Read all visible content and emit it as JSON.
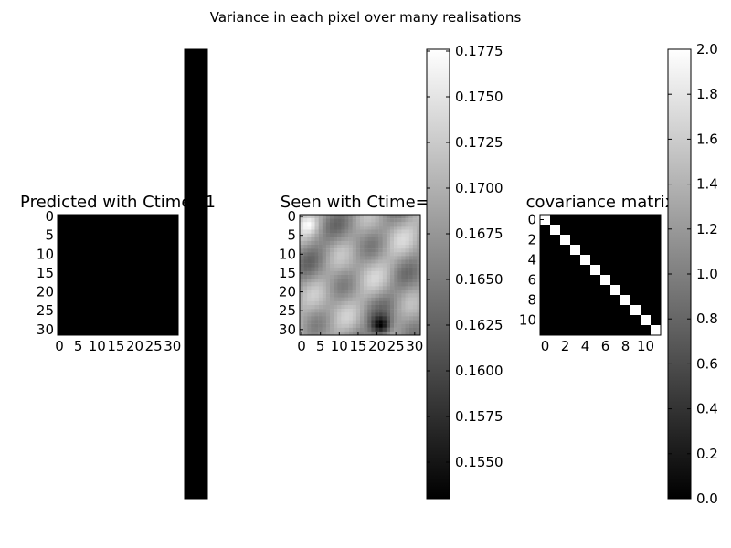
{
  "figure": {
    "suptitle": "Variance in each pixel over many realisations"
  },
  "chart_data": [
    {
      "type": "heatmap",
      "title": "Predicted with Ctime=1",
      "rows": 32,
      "cols": 32,
      "cmap": "gray",
      "values_description_uniform": 0.0,
      "vmin": 0.0,
      "vmax": 0.0,
      "xticks": [
        0,
        5,
        10,
        15,
        20,
        25,
        30
      ],
      "yticks": [
        0,
        5,
        10,
        15,
        20,
        25,
        30
      ],
      "xtick_labels": [
        "0",
        "5",
        "10",
        "15",
        "20",
        "25",
        "30"
      ],
      "ytick_labels": [
        "0",
        "5",
        "10",
        "15",
        "20",
        "25",
        "30"
      ],
      "colorbar_ticks": [],
      "colorbar_labels": []
    },
    {
      "type": "heatmap",
      "title": "Seen with Ctime=1",
      "rows": 32,
      "cols": 32,
      "cmap": "gray",
      "vmin": 0.153,
      "vmax": 0.1776,
      "xticks": [
        0,
        5,
        10,
        15,
        20,
        25,
        30
      ],
      "yticks": [
        0,
        5,
        10,
        15,
        20,
        25,
        30
      ],
      "xtick_labels": [
        "0",
        "5",
        "10",
        "15",
        "20",
        "25",
        "30"
      ],
      "ytick_labels": [
        "0",
        "5",
        "10",
        "15",
        "20",
        "25",
        "30"
      ],
      "colorbar_ticks": [
        0.155,
        0.1575,
        0.16,
        0.1625,
        0.165,
        0.1675,
        0.17,
        0.1725,
        0.175,
        0.1775
      ],
      "colorbar_labels": [
        "0.1550",
        "0.1575",
        "0.1600",
        "0.1625",
        "0.1650",
        "0.1675",
        "0.1700",
        "0.1725",
        "0.1750",
        "0.1775"
      ]
    },
    {
      "type": "heatmap",
      "title": "covariance matrix",
      "rows": 12,
      "cols": 12,
      "cmap": "gray",
      "vmin": 0.0,
      "vmax": 2.0,
      "diagonal_value": 2.0,
      "offdiagonal_value": 0.0,
      "xticks": [
        0,
        2,
        4,
        6,
        8,
        10
      ],
      "yticks": [
        0,
        2,
        4,
        6,
        8,
        10
      ],
      "xtick_labels": [
        "0",
        "2",
        "4",
        "6",
        "8",
        "10"
      ],
      "ytick_labels": [
        "0",
        "2",
        "4",
        "6",
        "8",
        "10"
      ],
      "colorbar_ticks": [
        0.0,
        0.2,
        0.4,
        0.6,
        0.8,
        1.0,
        1.2,
        1.4,
        1.6,
        1.8,
        2.0
      ],
      "colorbar_labels": [
        "0.0",
        "0.2",
        "0.4",
        "0.6",
        "0.8",
        "1.0",
        "1.2",
        "1.4",
        "1.6",
        "1.8",
        "2.0"
      ]
    }
  ]
}
